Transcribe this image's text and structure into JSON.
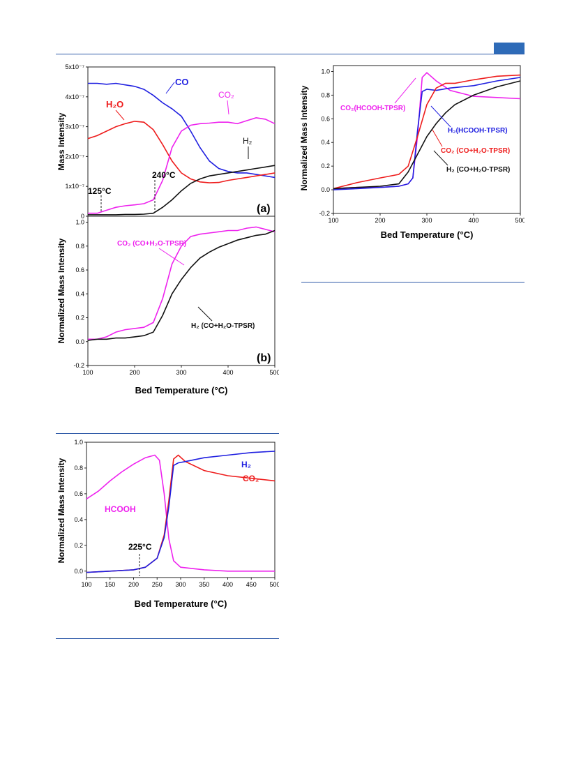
{
  "page": {
    "rule_color": "#2f5aa8",
    "tab_color": "#2e6bb8"
  },
  "chart_data": [
    {
      "type": "line",
      "panel_label": "(a)",
      "ylabel": "Mass Intensity",
      "xlim": [
        100,
        500
      ],
      "ylim": [
        0,
        5e-07
      ],
      "x_ticks": [],
      "y_ticks": [
        {
          "value": 0,
          "label": "0"
        },
        {
          "value": 1e-07,
          "label": "1x10⁻⁷"
        },
        {
          "value": 2e-07,
          "label": "2x10⁻⁷"
        },
        {
          "value": 3e-07,
          "label": "3x10⁻⁷"
        },
        {
          "value": 4e-07,
          "label": "4x10⁻⁷"
        },
        {
          "value": 5e-07,
          "label": "5x10⁻⁷"
        }
      ],
      "series": [
        {
          "name": "CO",
          "color": "#1f1fe0",
          "x": [
            100,
            120,
            140,
            160,
            180,
            200,
            220,
            240,
            260,
            280,
            300,
            320,
            340,
            360,
            380,
            400,
            420,
            440,
            460,
            480,
            500
          ],
          "y": [
            4.45e-07,
            4.45e-07,
            4.42e-07,
            4.45e-07,
            4.4e-07,
            4.35e-07,
            4.25e-07,
            4.05e-07,
            3.8e-07,
            3.6e-07,
            3.35e-07,
            2.85e-07,
            2.3e-07,
            1.85e-07,
            1.6e-07,
            1.5e-07,
            1.45e-07,
            1.45e-07,
            1.4e-07,
            1.35e-07,
            1.3e-07
          ]
        },
        {
          "name": "H₂O",
          "color": "#ee1c1c",
          "x": [
            100,
            120,
            140,
            160,
            180,
            200,
            220,
            240,
            260,
            280,
            300,
            320,
            340,
            360,
            380,
            400,
            420,
            440,
            460,
            480,
            500
          ],
          "y": [
            2.6e-07,
            2.7e-07,
            2.85e-07,
            3e-07,
            3.1e-07,
            3.18e-07,
            3.15e-07,
            2.9e-07,
            2.4e-07,
            1.85e-07,
            1.45e-07,
            1.25e-07,
            1.15e-07,
            1.12e-07,
            1.13e-07,
            1.2e-07,
            1.25e-07,
            1.3e-07,
            1.35e-07,
            1.4e-07,
            1.45e-07
          ]
        },
        {
          "name": "CO₂",
          "color": "#ee22ee",
          "x": [
            100,
            120,
            140,
            160,
            180,
            200,
            220,
            240,
            260,
            280,
            300,
            320,
            340,
            360,
            380,
            400,
            420,
            440,
            460,
            480,
            500
          ],
          "y": [
            1e-08,
            1e-08,
            2e-08,
            3e-08,
            3.5e-08,
            3.8e-08,
            4.2e-08,
            5.5e-08,
            1.2e-07,
            2.3e-07,
            2.85e-07,
            3.05e-07,
            3.1e-07,
            3.12e-07,
            3.15e-07,
            3.15e-07,
            3.1e-07,
            3.2e-07,
            3.3e-07,
            3.25e-07,
            3.1e-07
          ]
        },
        {
          "name": "H₂",
          "color": "#111111",
          "x": [
            100,
            120,
            140,
            160,
            180,
            200,
            220,
            240,
            260,
            280,
            300,
            320,
            340,
            360,
            380,
            400,
            420,
            440,
            460,
            480,
            500
          ],
          "y": [
            5e-09,
            5e-09,
            5e-09,
            5e-09,
            6e-09,
            6e-09,
            7e-09,
            1e-08,
            3e-08,
            5.5e-08,
            8.5e-08,
            1.1e-07,
            1.25e-07,
            1.35e-07,
            1.4e-07,
            1.45e-07,
            1.5e-07,
            1.55e-07,
            1.6e-07,
            1.65e-07,
            1.7e-07
          ]
        }
      ],
      "annotations": [
        {
          "text": "125°C",
          "x": 125
        },
        {
          "text": "240°C",
          "x": 240
        }
      ]
    },
    {
      "type": "line",
      "panel_label": "(b)",
      "xlabel": "Bed Temperature (°C)",
      "ylabel": "Normalized Mass Intensity",
      "xlim": [
        100,
        500
      ],
      "ylim": [
        -0.2,
        1.05
      ],
      "x_ticks": [
        100,
        200,
        300,
        400,
        500
      ],
      "y_ticks": [
        -0.2,
        0.0,
        0.2,
        0.4,
        0.6,
        0.8,
        1.0
      ],
      "series": [
        {
          "name": "CO₂ (CO+H₂O-TPSR)",
          "color": "#ee22ee",
          "x": [
            100,
            120,
            140,
            160,
            180,
            200,
            220,
            240,
            260,
            280,
            300,
            320,
            340,
            360,
            380,
            400,
            420,
            440,
            460,
            480,
            500
          ],
          "y": [
            0.02,
            0.02,
            0.04,
            0.08,
            0.1,
            0.11,
            0.12,
            0.16,
            0.36,
            0.65,
            0.8,
            0.88,
            0.9,
            0.91,
            0.92,
            0.93,
            0.93,
            0.95,
            0.96,
            0.94,
            0.92
          ]
        },
        {
          "name": "H₂ (CO+H₂O-TPSR)",
          "color": "#111111",
          "x": [
            100,
            120,
            140,
            160,
            180,
            200,
            220,
            240,
            260,
            280,
            300,
            320,
            340,
            360,
            380,
            400,
            420,
            440,
            460,
            480,
            500
          ],
          "y": [
            0.01,
            0.02,
            0.02,
            0.03,
            0.03,
            0.04,
            0.05,
            0.08,
            0.22,
            0.4,
            0.52,
            0.62,
            0.7,
            0.75,
            0.79,
            0.82,
            0.85,
            0.87,
            0.89,
            0.9,
            0.93
          ]
        }
      ]
    },
    {
      "type": "line",
      "xlabel": "Bed Temperature (°C)",
      "ylabel": "Normalized Mass Intensity",
      "xlim": [
        100,
        500
      ],
      "ylim": [
        -0.2,
        1.05
      ],
      "x_ticks": [
        100,
        200,
        300,
        400,
        500
      ],
      "y_ticks": [
        -0.2,
        0.0,
        0.2,
        0.4,
        0.6,
        0.8,
        1.0
      ],
      "series": [
        {
          "name": "CO₂(HCOOH-TPSR)",
          "color": "#ee22ee",
          "x": [
            100,
            150,
            200,
            240,
            260,
            270,
            280,
            290,
            300,
            320,
            350,
            400,
            450,
            500
          ],
          "y": [
            0.01,
            0.02,
            0.02,
            0.03,
            0.05,
            0.1,
            0.45,
            0.95,
            0.99,
            0.92,
            0.84,
            0.79,
            0.78,
            0.77
          ]
        },
        {
          "name": "H₂(HCOOH-TPSR)",
          "color": "#1f1fe0",
          "x": [
            100,
            150,
            200,
            240,
            260,
            270,
            280,
            290,
            300,
            320,
            350,
            400,
            450,
            500
          ],
          "y": [
            0.0,
            0.01,
            0.02,
            0.03,
            0.05,
            0.1,
            0.5,
            0.83,
            0.85,
            0.84,
            0.86,
            0.88,
            0.92,
            0.95
          ]
        },
        {
          "name": "CO₂ (CO+H₂O-TPSR)",
          "color": "#ee1c1c",
          "x": [
            100,
            150,
            200,
            240,
            260,
            280,
            300,
            320,
            340,
            360,
            400,
            450,
            500
          ],
          "y": [
            0.01,
            0.06,
            0.1,
            0.13,
            0.2,
            0.45,
            0.72,
            0.86,
            0.9,
            0.9,
            0.93,
            0.96,
            0.97
          ]
        },
        {
          "name": "H₂ (CO+H₂O-TPSR)",
          "color": "#111111",
          "x": [
            100,
            150,
            200,
            240,
            260,
            280,
            300,
            320,
            340,
            360,
            400,
            450,
            500
          ],
          "y": [
            0.01,
            0.02,
            0.03,
            0.05,
            0.15,
            0.3,
            0.45,
            0.56,
            0.65,
            0.72,
            0.8,
            0.87,
            0.92
          ]
        }
      ]
    },
    {
      "type": "line",
      "xlabel": "Bed Temperature (°C)",
      "ylabel": "Normalized Mass Intensity",
      "xlim": [
        100,
        500
      ],
      "ylim": [
        -0.05,
        1.0
      ],
      "x_ticks": [
        100,
        150,
        200,
        250,
        300,
        350,
        400,
        450,
        500
      ],
      "y_ticks": [
        0.0,
        0.2,
        0.4,
        0.6,
        0.8,
        1.0
      ],
      "series": [
        {
          "name": "HCOOH",
          "color": "#ee22ee",
          "x": [
            100,
            125,
            150,
            175,
            200,
            225,
            245,
            255,
            265,
            275,
            285,
            300,
            350,
            400,
            450,
            500
          ],
          "y": [
            0.56,
            0.62,
            0.7,
            0.77,
            0.83,
            0.88,
            0.9,
            0.86,
            0.6,
            0.25,
            0.08,
            0.03,
            0.01,
            0.0,
            0.0,
            0.0
          ]
        },
        {
          "name": "CO₂",
          "color": "#ee1c1c",
          "x": [
            100,
            150,
            200,
            225,
            250,
            265,
            275,
            285,
            295,
            310,
            350,
            400,
            450,
            500
          ],
          "y": [
            -0.01,
            0.0,
            0.01,
            0.03,
            0.1,
            0.28,
            0.55,
            0.87,
            0.9,
            0.85,
            0.78,
            0.74,
            0.72,
            0.7
          ]
        },
        {
          "name": "H₂",
          "color": "#1f1fe0",
          "x": [
            100,
            150,
            200,
            225,
            250,
            265,
            275,
            285,
            295,
            310,
            350,
            400,
            450,
            500
          ],
          "y": [
            -0.01,
            0.0,
            0.01,
            0.03,
            0.1,
            0.26,
            0.5,
            0.82,
            0.84,
            0.85,
            0.88,
            0.9,
            0.92,
            0.93
          ]
        }
      ],
      "annotations": [
        {
          "text": "225°C",
          "x": 225
        }
      ]
    }
  ]
}
